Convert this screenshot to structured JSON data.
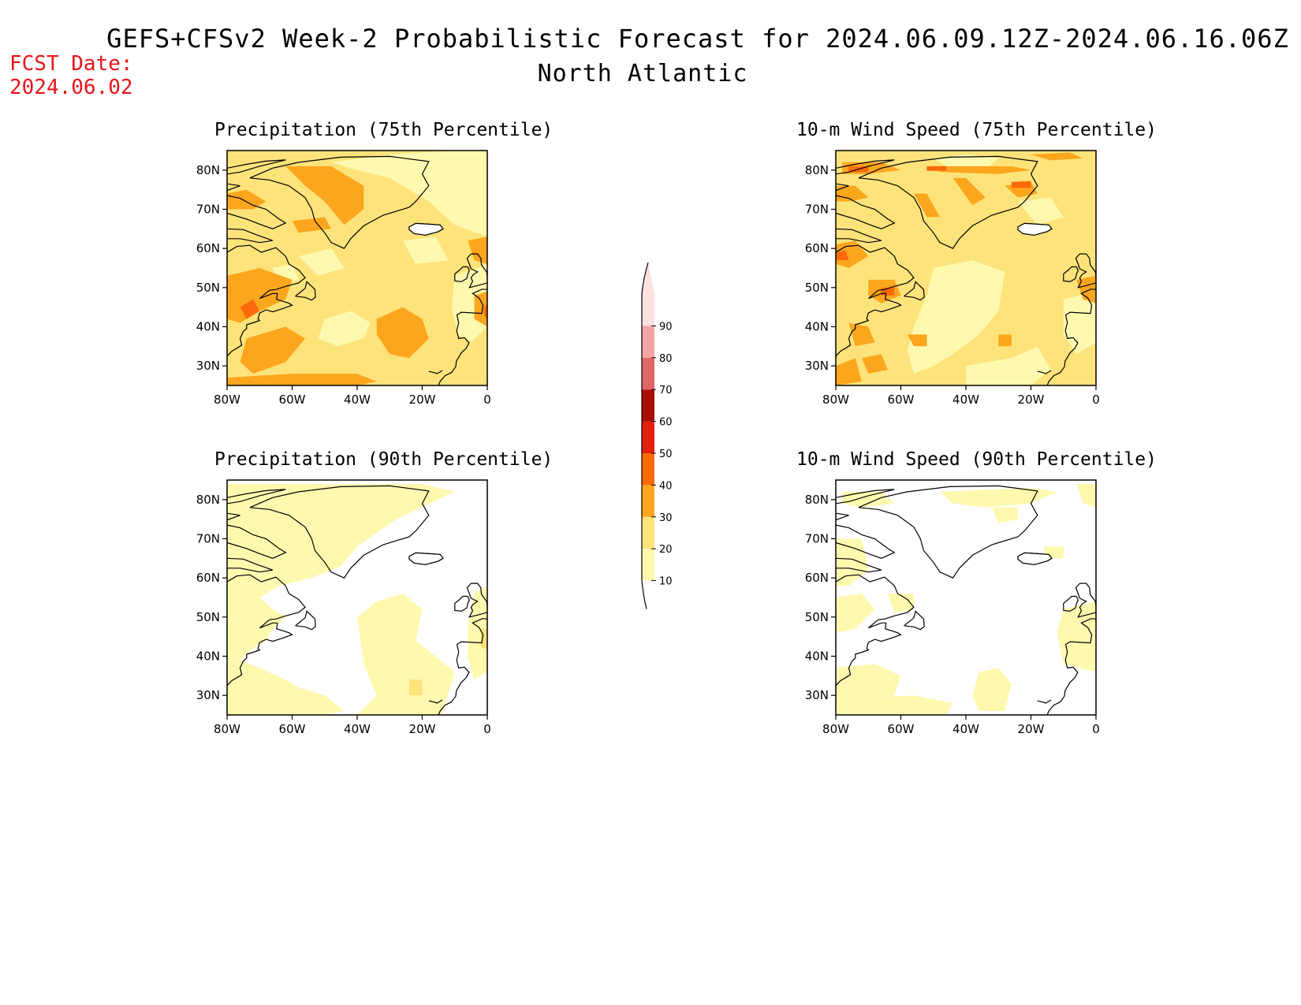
{
  "header": {
    "title": "GEFS+CFSv2 Week-2 Probabilistic Forecast for 2024.06.09.12Z-2024.06.16.06Z",
    "region": "North Atlantic",
    "fcst_label": "FCST Date:",
    "fcst_date": "2024.06.02"
  },
  "colors": {
    "c10": "#fff9b0",
    "c20": "#fde37a",
    "c30": "#fca61e",
    "c40": "#fb6a0a",
    "c50": "#e3200c",
    "c60": "#a80d06",
    "c70": "#e16666",
    "c80": "#f4a4a4",
    "c90": "#fde0e0",
    "coast": "#000000",
    "fcst_text": "#e8141a"
  },
  "colorbar": {
    "labels": [
      "10",
      "20",
      "30",
      "40",
      "50",
      "60",
      "70",
      "80",
      "90"
    ]
  },
  "axes": {
    "lon_labels": [
      "80W",
      "60W",
      "40W",
      "20W",
      "0"
    ],
    "lat_labels": [
      "80N",
      "70N",
      "60N",
      "50N",
      "40N",
      "30N"
    ]
  },
  "panels": [
    {
      "title": "Precipitation (75th Percentile)",
      "field": "precip75"
    },
    {
      "title": "10-m Wind Speed (75th Percentile)",
      "field": "wind75"
    },
    {
      "title": "Precipitation (90th Percentile)",
      "field": "precip90"
    },
    {
      "title": "10-m Wind Speed (90th Percentile)",
      "field": "wind90"
    }
  ]
}
